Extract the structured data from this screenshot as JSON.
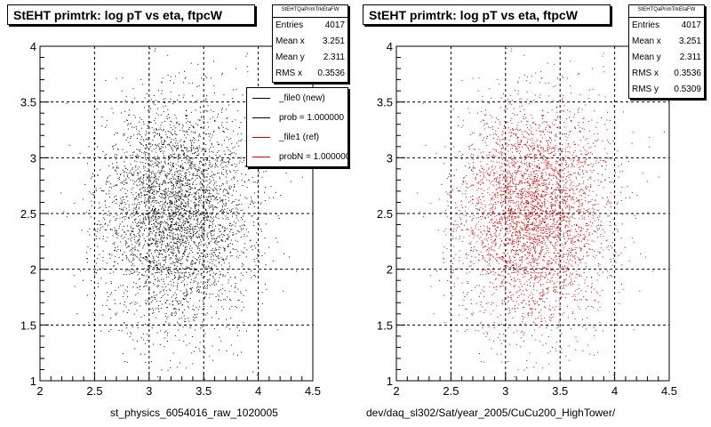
{
  "chart_data": [
    {
      "type": "scatter",
      "title": "StEHT primtrk: log pT vs eta, ftpcW",
      "xlabel": "",
      "ylabel": "",
      "xlim": [
        2,
        4.5
      ],
      "ylim": [
        1,
        4
      ],
      "xticks": [
        "2",
        "2.5",
        "3",
        "3.5",
        "4",
        "4.5"
      ],
      "yticks": [
        "1",
        "1.5",
        "2",
        "2.5",
        "3",
        "3.5",
        "4"
      ],
      "grid": true,
      "color": "#000000",
      "point_count": 4017,
      "mean_x": 3.251,
      "mean_y": 2.311,
      "rms_x": 0.3536,
      "rms_y": 0.5309,
      "stats": {
        "header": "StEHTQaPrimTrkEtaFW",
        "rows": [
          {
            "label": "Entries",
            "value": "4017"
          },
          {
            "label": "Mean x",
            "value": "3.251"
          },
          {
            "label": "Mean y",
            "value": "2.311"
          },
          {
            "label": "RMS x",
            "value": "0.3536"
          }
        ]
      },
      "legend": {
        "position": "top-right",
        "entries": [
          {
            "label": "_file0 (new)",
            "color": "#000000"
          },
          {
            "label": "prob = 1.000000",
            "color": "#000000"
          },
          {
            "label": "_file1 (ref)",
            "color": "#cc0000"
          },
          {
            "label": "probN = 1.000000",
            "color": "#cc0000"
          }
        ]
      },
      "footer": "st_physics_6054016_raw_1020005"
    },
    {
      "type": "scatter",
      "title": "StEHT primtrk: log pT vs eta, ftpcW",
      "xlabel": "",
      "ylabel": "",
      "xlim": [
        2,
        4.5
      ],
      "ylim": [
        1,
        4
      ],
      "xticks": [
        "2",
        "2.5",
        "3",
        "3.5",
        "4",
        "4.5"
      ],
      "yticks": [
        "1",
        "1.5",
        "2",
        "2.5",
        "3",
        "3.5",
        "4"
      ],
      "grid": true,
      "color": "#cc0000",
      "point_count": 4017,
      "mean_x": 3.251,
      "mean_y": 2.311,
      "rms_x": 0.3536,
      "rms_y": 0.5309,
      "stats": {
        "header": "StEHTQaPrimTrkEtaFW",
        "rows": [
          {
            "label": "Entries",
            "value": "4017"
          },
          {
            "label": "Mean x",
            "value": "3.251"
          },
          {
            "label": "Mean y",
            "value": "2.311"
          },
          {
            "label": "RMS x",
            "value": "0.3536"
          },
          {
            "label": "RMS y",
            "value": "0.5309"
          }
        ]
      },
      "footer": "dev/daq_sl302/Sat/year_2005/CuCu200_HighTower/"
    }
  ]
}
